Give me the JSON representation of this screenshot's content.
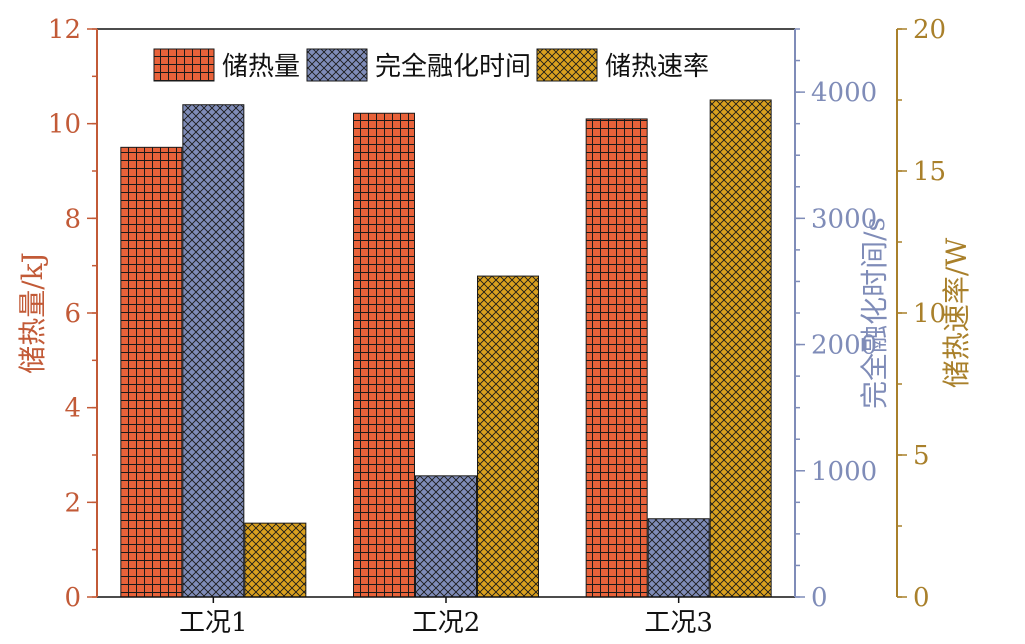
{
  "chart_data": {
    "type": "bar",
    "categories": [
      "工况1",
      "工况2",
      "工况3"
    ],
    "series": [
      {
        "name": "储热量",
        "axis": "left",
        "color": "#e8623a",
        "pattern": "grid",
        "values": [
          9.5,
          10.22,
          10.1
        ]
      },
      {
        "name": "完全融化时间",
        "axis": "right1",
        "color": "#7f8cb8",
        "pattern": "crosshatch",
        "values": [
          3900,
          960,
          620
        ]
      },
      {
        "name": "储热速率",
        "axis": "right2",
        "color": "#d9a01e",
        "pattern": "crosshatch",
        "values": [
          2.6,
          11.3,
          17.5
        ]
      }
    ],
    "axes": {
      "left": {
        "label": "储热量/kJ",
        "color": "#c25a37",
        "ylim": [
          0,
          12
        ],
        "ticks": [
          0,
          2,
          4,
          6,
          8,
          10,
          12
        ]
      },
      "right1": {
        "label": "完全融化时间/s",
        "color": "#7f8cb8",
        "ylim": [
          0,
          4500
        ],
        "ticks": [
          0,
          1000,
          2000,
          3000,
          4000
        ]
      },
      "right2": {
        "label": "储热速率/W",
        "color": "#a9802b",
        "ylim": [
          0,
          20
        ],
        "ticks": [
          0,
          5,
          10,
          15,
          20
        ]
      }
    },
    "legend_position": "top",
    "grid": false
  }
}
